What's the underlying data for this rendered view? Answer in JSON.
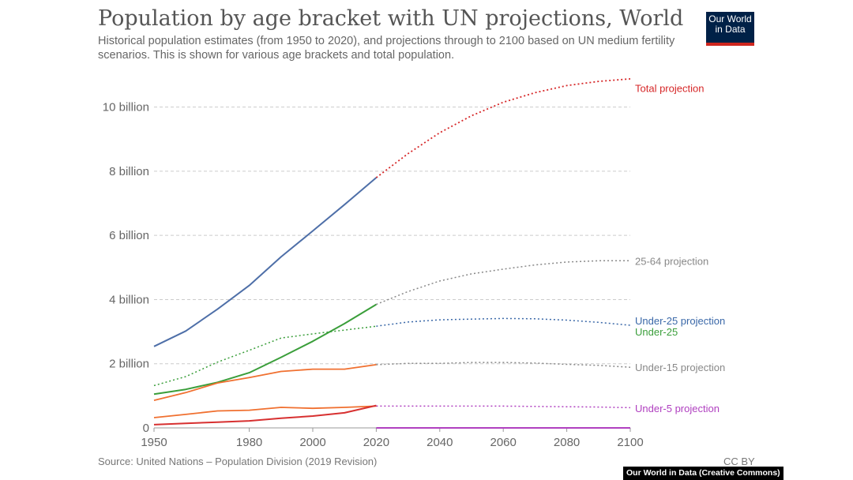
{
  "header": {
    "title": "Population by age bracket with UN projections, World",
    "subtitle": "Historical population estimates (from 1950 to 2020), and projections through to 2100 based on UN medium fertility scenarios. This is shown for various age brackets and total population.",
    "logo_line1": "Our World",
    "logo_line2": "in Data"
  },
  "footer": {
    "source": "Source: United Nations – Population Division (2019 Revision)",
    "license": "CC BY",
    "credit": "Our World in Data (Creative Commons)"
  },
  "colors": {
    "total": "#4e6fa8",
    "total_projection": "#d62728",
    "under25": "#3a9e3a",
    "under25_projection": "#3a68a8",
    "under15": "#f07030",
    "under15_projection": "#888888",
    "under5": "#d73030",
    "under5_projection": "#b040c0",
    "age25_64_projection": "#888888",
    "age25_64": "#3a9e3a",
    "grid": "#cccccc"
  },
  "chart_data": {
    "type": "line",
    "title": "Population by age bracket with UN projections, World",
    "xlim": [
      1950,
      2100
    ],
    "ylim": [
      0,
      11000000000
    ],
    "x_ticks": [
      1950,
      1980,
      2000,
      2020,
      2040,
      2060,
      2080,
      2100
    ],
    "y_ticks": [
      {
        "value": 0,
        "label": "0"
      },
      {
        "value": 2000000000,
        "label": "2 billion"
      },
      {
        "value": 4000000000,
        "label": "4 billion"
      },
      {
        "value": 6000000000,
        "label": "6 billion"
      },
      {
        "value": 8000000000,
        "label": "8 billion"
      },
      {
        "value": 10000000000,
        "label": "10 billion"
      }
    ],
    "grid": "horizontal dashed",
    "labels": {
      "total_projection": "Total projection",
      "age25_64_projection": "25-64 projection",
      "under25_projection": "Under-25 projection",
      "under25": "Under-25",
      "under15_projection": "Under-15 projection",
      "under5_projection": "Under-5 projection"
    },
    "series": [
      {
        "key": "total",
        "color_key": "total",
        "dashed": false,
        "width": 2,
        "x": [
          1950,
          1960,
          1970,
          1980,
          1990,
          2000,
          2010,
          2020
        ],
        "y": [
          2540000000,
          3020000000,
          3700000000,
          4440000000,
          5330000000,
          6140000000,
          6960000000,
          7800000000
        ]
      },
      {
        "key": "total_projection",
        "color_key": "total_projection",
        "dashed": true,
        "width": 1.8,
        "label_key": "total_projection",
        "label_y": 10600000000,
        "x": [
          2020,
          2030,
          2040,
          2050,
          2060,
          2070,
          2080,
          2090,
          2100
        ],
        "y": [
          7800000000,
          8550000000,
          9200000000,
          9730000000,
          10150000000,
          10450000000,
          10670000000,
          10800000000,
          10880000000
        ]
      },
      {
        "key": "age25_64",
        "color_key": "age25_64",
        "dashed": false,
        "width": 2,
        "x": [
          1950,
          1960,
          1970,
          1980,
          1990,
          2000,
          2010,
          2020
        ],
        "y": [
          1050000000,
          1200000000,
          1420000000,
          1720000000,
          2200000000,
          2700000000,
          3250000000,
          3850000000
        ]
      },
      {
        "key": "age25_64_projection",
        "color_key": "age25_64_projection",
        "dashed": true,
        "width": 1.5,
        "label_key": "age25_64_projection",
        "label_y": 5200000000,
        "x": [
          2020,
          2030,
          2040,
          2050,
          2060,
          2070,
          2080,
          2090,
          2100
        ],
        "y": [
          3850000000,
          4250000000,
          4580000000,
          4800000000,
          4950000000,
          5080000000,
          5170000000,
          5210000000,
          5210000000
        ]
      },
      {
        "key": "under25_projection",
        "color_key": "under25",
        "dashed": true,
        "width": 1.5,
        "x": [
          1950,
          1960,
          1970,
          1980,
          1990,
          2000,
          2010,
          2020
        ],
        "y": [
          1320000000,
          1600000000,
          2050000000,
          2420000000,
          2800000000,
          2930000000,
          3050000000,
          3170000000
        ]
      },
      {
        "key": "under25_projection_future",
        "color_key": "under25_projection",
        "dashed": true,
        "width": 1.5,
        "label_key": "under25_projection",
        "label_y": 3350000000,
        "x": [
          2020,
          2030,
          2040,
          2050,
          2060,
          2070,
          2080,
          2090,
          2100
        ],
        "y": [
          3170000000,
          3300000000,
          3370000000,
          3390000000,
          3410000000,
          3400000000,
          3360000000,
          3290000000,
          3200000000
        ]
      },
      {
        "key": "under15",
        "color_key": "under15",
        "dashed": false,
        "width": 1.8,
        "x": [
          1950,
          1960,
          1970,
          1980,
          1990,
          2000,
          2010,
          2020
        ],
        "y": [
          860000000,
          1100000000,
          1400000000,
          1570000000,
          1760000000,
          1830000000,
          1830000000,
          1970000000
        ]
      },
      {
        "key": "under15_projection",
        "color_key": "under15_projection",
        "dashed": true,
        "width": 1.5,
        "label_key": "under15_projection",
        "label_y": 1890000000,
        "x": [
          2020,
          2030,
          2040,
          2050,
          2060,
          2070,
          2080,
          2090,
          2100
        ],
        "y": [
          1970000000,
          2010000000,
          2010000000,
          2040000000,
          2040000000,
          2020000000,
          1980000000,
          1950000000,
          1890000000
        ]
      },
      {
        "key": "under5",
        "color_key": "under15",
        "dashed": false,
        "width": 1.8,
        "x": [
          1950,
          1960,
          1970,
          1980,
          1990,
          2000,
          2010,
          2020
        ],
        "y": [
          320000000,
          420000000,
          530000000,
          550000000,
          640000000,
          610000000,
          640000000,
          680000000
        ]
      },
      {
        "key": "under5_projection",
        "color_key": "under5_projection",
        "dashed": true,
        "width": 1.5,
        "label_key": "under5_projection",
        "label_y": 620000000,
        "x": [
          2020,
          2030,
          2040,
          2050,
          2060,
          2070,
          2080,
          2090,
          2100
        ],
        "y": [
          680000000,
          680000000,
          680000000,
          680000000,
          680000000,
          670000000,
          660000000,
          650000000,
          630000000
        ]
      },
      {
        "key": "under1",
        "color_key": "under5",
        "dashed": false,
        "width": 2,
        "x": [
          1950,
          1960,
          1970,
          1980,
          1990,
          2000,
          2010,
          2020
        ],
        "y": [
          100000000,
          140000000,
          180000000,
          220000000,
          300000000,
          370000000,
          470000000,
          700000000
        ]
      },
      {
        "key": "baseline_projection",
        "color_key": "under5_projection",
        "dashed": false,
        "width": 2,
        "x": [
          2020,
          2100
        ],
        "y": [
          0,
          0
        ]
      }
    ]
  }
}
